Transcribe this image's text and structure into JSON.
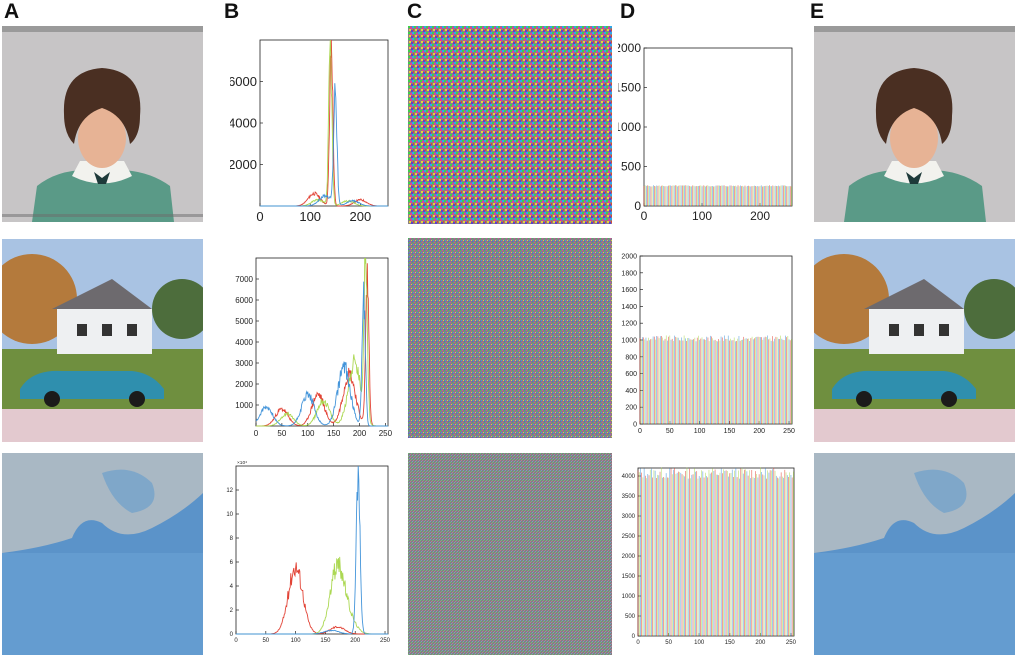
{
  "column_labels": [
    "A",
    "B",
    "C",
    "D",
    "E"
  ],
  "rows": [
    {
      "plain_image": "portrait-woman",
      "encrypted_image": "noise-colour",
      "decrypted_image": "portrait-woman"
    },
    {
      "plain_image": "house-and-car",
      "encrypted_image": "noise-colour",
      "decrypted_image": "house-and-car"
    },
    {
      "plain_image": "aerial-coastline",
      "encrypted_image": "noise-colour",
      "decrypted_image": "aerial-coastline"
    }
  ],
  "colors": {
    "red": "#e0392b",
    "green": "#a8d64a",
    "blue": "#3a8fd8",
    "noise_bg": "#7f7f7f"
  },
  "chart_data": [
    {
      "type": "histogram-line",
      "panel": "B1",
      "xlim": [
        0,
        255
      ],
      "ylim": [
        0,
        8000
      ],
      "xticks": [
        0,
        100,
        200
      ],
      "yticks": [
        2000,
        4000,
        6000
      ],
      "series": [
        {
          "color": "red",
          "peaks": [
            [
              108,
              600
            ],
            [
              142,
              7800
            ],
            [
              200,
              300
            ]
          ]
        },
        {
          "color": "green",
          "peaks": [
            [
              140,
              7500
            ],
            [
              115,
              300
            ],
            [
              175,
              250
            ]
          ]
        },
        {
          "color": "blue",
          "peaks": [
            [
              150,
              5700
            ],
            [
              130,
              500
            ],
            [
              185,
              250
            ]
          ]
        }
      ]
    },
    {
      "type": "histogram-line",
      "panel": "B2",
      "xlim": [
        0,
        255
      ],
      "ylim": [
        0,
        8000
      ],
      "xticks": [
        0,
        50,
        100,
        150,
        200,
        250
      ],
      "yticks": [
        1000,
        2000,
        3000,
        4000,
        5000,
        6000,
        7000
      ],
      "series": [
        {
          "color": "red",
          "peaks": [
            [
              50,
              800
            ],
            [
              120,
              1500
            ],
            [
              180,
              2500
            ],
            [
              215,
              7000
            ]
          ]
        },
        {
          "color": "green",
          "peaks": [
            [
              60,
              600
            ],
            [
              130,
              1200
            ],
            [
              190,
              3000
            ],
            [
              212,
              7900
            ]
          ]
        },
        {
          "color": "blue",
          "peaks": [
            [
              20,
              900
            ],
            [
              100,
              1500
            ],
            [
              170,
              2800
            ],
            [
              208,
              6200
            ]
          ]
        }
      ]
    },
    {
      "type": "histogram-line",
      "panel": "B3",
      "xlim": [
        0,
        255
      ],
      "ylim": [
        0,
        14
      ],
      "xticks": [
        0,
        50,
        100,
        150,
        200,
        250
      ],
      "yticks": [
        0,
        2,
        4,
        6,
        8,
        10,
        12
      ],
      "yscale_label": "×10⁴",
      "series": [
        {
          "color": "red",
          "peaks": [
            [
              100,
              5.6
            ],
            [
              170,
              0.6
            ]
          ]
        },
        {
          "color": "green",
          "peaks": [
            [
              170,
              5.5
            ],
            [
              190,
              1.0
            ]
          ]
        },
        {
          "color": "blue",
          "peaks": [
            [
              205,
              13.6
            ],
            [
              160,
              0.3
            ]
          ]
        }
      ]
    },
    {
      "type": "histogram-bar",
      "panel": "D1",
      "xlim": [
        0,
        255
      ],
      "ylim": [
        0,
        2000
      ],
      "xticks": [
        0,
        100,
        200
      ],
      "yticks": [
        0,
        500,
        1000,
        1500,
        2000
      ],
      "level": 256
    },
    {
      "type": "histogram-bar",
      "panel": "D2",
      "xlim": [
        0,
        255
      ],
      "ylim": [
        0,
        2000
      ],
      "xticks": [
        0,
        50,
        100,
        150,
        200,
        250
      ],
      "yticks": [
        0,
        200,
        400,
        600,
        800,
        1000,
        1200,
        1400,
        1600,
        1800,
        2000
      ],
      "level": 1024
    },
    {
      "type": "histogram-bar",
      "panel": "D3",
      "xlim": [
        0,
        255
      ],
      "ylim": [
        0,
        4200
      ],
      "xticks": [
        0,
        50,
        100,
        150,
        200,
        250
      ],
      "yticks": [
        0,
        500,
        1000,
        1500,
        2000,
        2500,
        3000,
        3500,
        4000
      ],
      "level": 4096
    }
  ]
}
